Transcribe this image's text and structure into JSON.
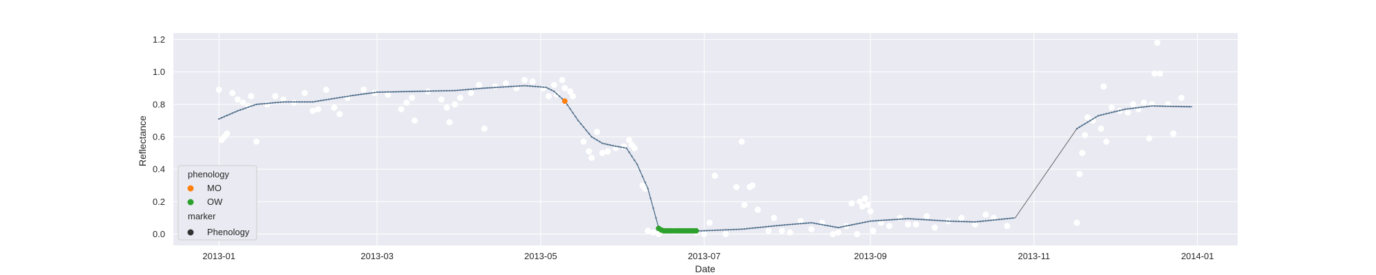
{
  "chart_data": {
    "type": "scatter",
    "title": "",
    "xlabel": "Date",
    "ylabel": "Reflectance",
    "x_ticks": [
      "2013-01",
      "2013-03",
      "2013-05",
      "2013-07",
      "2013-09",
      "2013-11",
      "2014-01"
    ],
    "x_tick_dates": [
      "2013-01-01",
      "2013-03-01",
      "2013-05-01",
      "2013-07-01",
      "2013-09-01",
      "2013-11-01",
      "2014-01-01"
    ],
    "y_ticks": [
      "0.0",
      "0.2",
      "0.4",
      "0.6",
      "0.8",
      "1.0",
      "1.2"
    ],
    "xlim": [
      "2012-12-15",
      "2014-01-16"
    ],
    "ylim": [
      -0.07,
      1.24
    ],
    "grid": true,
    "background_color": "#eaeaf2",
    "legend": {
      "position": "lower-left",
      "hue_title": "phenology",
      "marker_title": "marker",
      "entries": [
        {
          "label": "MO",
          "color": "#ff7f0e"
        },
        {
          "label": "OW",
          "color": "#2ca02c"
        }
      ],
      "marker_entries": [
        {
          "label": "Phenology",
          "color": "#333333"
        }
      ]
    },
    "series": [
      {
        "type": "scatter",
        "color": "#ffffff",
        "points": [
          [
            "2013-01-01",
            0.89
          ],
          [
            "2013-01-02",
            0.58
          ],
          [
            "2013-01-03",
            0.6
          ],
          [
            "2013-01-04",
            0.62
          ],
          [
            "2013-01-06",
            0.87
          ],
          [
            "2013-01-08",
            0.83
          ],
          [
            "2013-01-10",
            0.81
          ],
          [
            "2013-01-12",
            0.79
          ],
          [
            "2013-01-13",
            0.85
          ],
          [
            "2013-01-15",
            0.57
          ],
          [
            "2013-01-19",
            0.8
          ],
          [
            "2013-01-22",
            0.85
          ],
          [
            "2013-01-25",
            0.83
          ],
          [
            "2013-01-29",
            0.81
          ],
          [
            "2013-02-02",
            0.87
          ],
          [
            "2013-02-05",
            0.76
          ],
          [
            "2013-02-07",
            0.77
          ],
          [
            "2013-02-10",
            0.89
          ],
          [
            "2013-02-13",
            0.78
          ],
          [
            "2013-02-15",
            0.74
          ],
          [
            "2013-02-18",
            0.84
          ],
          [
            "2013-02-24",
            0.89
          ],
          [
            "2013-02-28",
            0.87
          ],
          [
            "2013-03-05",
            0.86
          ],
          [
            "2013-03-10",
            0.77
          ],
          [
            "2013-03-12",
            0.81
          ],
          [
            "2013-03-14",
            0.84
          ],
          [
            "2013-03-15",
            0.7
          ],
          [
            "2013-03-20",
            0.88
          ],
          [
            "2013-03-25",
            0.83
          ],
          [
            "2013-03-27",
            0.78
          ],
          [
            "2013-03-28",
            0.69
          ],
          [
            "2013-03-30",
            0.8
          ],
          [
            "2013-04-01",
            0.84
          ],
          [
            "2013-04-05",
            0.87
          ],
          [
            "2013-04-08",
            0.92
          ],
          [
            "2013-04-10",
            0.65
          ],
          [
            "2013-04-14",
            0.91
          ],
          [
            "2013-04-18",
            0.93
          ],
          [
            "2013-04-22",
            0.9
          ],
          [
            "2013-04-25",
            0.95
          ],
          [
            "2013-04-28",
            0.94
          ],
          [
            "2013-05-02",
            0.9
          ],
          [
            "2013-05-04",
            0.85
          ],
          [
            "2013-05-06",
            0.92
          ],
          [
            "2013-05-07",
            0.86
          ],
          [
            "2013-05-09",
            0.95
          ],
          [
            "2013-05-10",
            0.9
          ],
          [
            "2013-05-12",
            0.88
          ],
          [
            "2013-05-13",
            0.85
          ],
          [
            "2013-05-17",
            0.57
          ],
          [
            "2013-05-19",
            0.51
          ],
          [
            "2013-05-20",
            0.47
          ],
          [
            "2013-05-22",
            0.63
          ],
          [
            "2013-05-24",
            0.5
          ],
          [
            "2013-05-26",
            0.51
          ],
          [
            "2013-05-29",
            0.53
          ],
          [
            "2013-06-01",
            0.54
          ],
          [
            "2013-06-03",
            0.58
          ],
          [
            "2013-06-04",
            0.55
          ],
          [
            "2013-06-05",
            0.53
          ],
          [
            "2013-06-08",
            0.3
          ],
          [
            "2013-06-09",
            0.28
          ],
          [
            "2013-06-10",
            0.02
          ],
          [
            "2013-06-12",
            0.01
          ],
          [
            "2013-06-14",
            0.0
          ],
          [
            "2013-06-20",
            0.02
          ],
          [
            "2013-06-28",
            0.01
          ],
          [
            "2013-07-01",
            0.0
          ],
          [
            "2013-07-03",
            0.07
          ],
          [
            "2013-07-05",
            0.36
          ],
          [
            "2013-07-09",
            0.0
          ],
          [
            "2013-07-13",
            0.29
          ],
          [
            "2013-07-15",
            0.57
          ],
          [
            "2013-07-16",
            0.18
          ],
          [
            "2013-07-18",
            0.29
          ],
          [
            "2013-07-19",
            0.3
          ],
          [
            "2013-07-21",
            0.15
          ],
          [
            "2013-07-25",
            0.02
          ],
          [
            "2013-07-27",
            0.1
          ],
          [
            "2013-07-30",
            0.02
          ],
          [
            "2013-08-02",
            0.01
          ],
          [
            "2013-08-06",
            0.08
          ],
          [
            "2013-08-10",
            0.03
          ],
          [
            "2013-08-14",
            0.07
          ],
          [
            "2013-08-18",
            0.0
          ],
          [
            "2013-08-20",
            0.01
          ],
          [
            "2013-08-23",
            0.05
          ],
          [
            "2013-08-25",
            0.19
          ],
          [
            "2013-08-27",
            0.0
          ],
          [
            "2013-08-28",
            0.2
          ],
          [
            "2013-08-29",
            0.17
          ],
          [
            "2013-08-30",
            0.22
          ],
          [
            "2013-08-31",
            0.18
          ],
          [
            "2013-09-01",
            0.14
          ],
          [
            "2013-09-02",
            0.02
          ],
          [
            "2013-09-05",
            0.07
          ],
          [
            "2013-09-08",
            0.05
          ],
          [
            "2013-09-12",
            0.1
          ],
          [
            "2013-09-15",
            0.06
          ],
          [
            "2013-09-18",
            0.06
          ],
          [
            "2013-09-22",
            0.11
          ],
          [
            "2013-09-25",
            0.04
          ],
          [
            "2013-09-30",
            0.08
          ],
          [
            "2013-10-05",
            0.1
          ],
          [
            "2013-10-10",
            0.06
          ],
          [
            "2013-10-14",
            0.12
          ],
          [
            "2013-10-17",
            0.1
          ],
          [
            "2013-10-22",
            0.05
          ],
          [
            "2013-11-17",
            0.07
          ],
          [
            "2013-11-18",
            0.37
          ],
          [
            "2013-11-19",
            0.5
          ],
          [
            "2013-11-20",
            0.61
          ],
          [
            "2013-11-21",
            0.72
          ],
          [
            "2013-11-23",
            0.7
          ],
          [
            "2013-11-26",
            0.65
          ],
          [
            "2013-11-27",
            0.91
          ],
          [
            "2013-11-28",
            0.57
          ],
          [
            "2013-11-30",
            0.78
          ],
          [
            "2013-12-03",
            0.76
          ],
          [
            "2013-12-06",
            0.75
          ],
          [
            "2013-12-08",
            0.8
          ],
          [
            "2013-12-10",
            0.77
          ],
          [
            "2013-12-12",
            0.81
          ],
          [
            "2013-12-14",
            0.59
          ],
          [
            "2013-12-15",
            0.8
          ],
          [
            "2013-12-16",
            0.99
          ],
          [
            "2013-12-17",
            1.18
          ],
          [
            "2013-12-18",
            0.99
          ],
          [
            "2013-12-21",
            0.8
          ],
          [
            "2013-12-23",
            0.62
          ],
          [
            "2013-12-26",
            0.84
          ]
        ]
      },
      {
        "type": "line",
        "color": "#4e6e8a",
        "thin_color": "#555555",
        "marker_size": 1.2,
        "points": [
          [
            "2013-01-01",
            0.71
          ],
          [
            "2013-01-08",
            0.76
          ],
          [
            "2013-01-15",
            0.8
          ],
          [
            "2013-01-25",
            0.815
          ],
          [
            "2013-02-05",
            0.815
          ],
          [
            "2013-02-20",
            0.855
          ],
          [
            "2013-03-01",
            0.875
          ],
          [
            "2013-03-15",
            0.88
          ],
          [
            "2013-03-30",
            0.885
          ],
          [
            "2013-04-10",
            0.9
          ],
          [
            "2013-04-25",
            0.915
          ],
          [
            "2013-05-03",
            0.905
          ],
          [
            "2013-05-06",
            0.88
          ],
          [
            "2013-05-10",
            0.82
          ],
          [
            "2013-05-15",
            0.7
          ],
          [
            "2013-05-20",
            0.6
          ],
          [
            "2013-05-24",
            0.56
          ],
          [
            "2013-05-28",
            0.545
          ],
          [
            "2013-06-02",
            0.53
          ],
          [
            "2013-06-06",
            0.43
          ],
          [
            "2013-06-10",
            0.28
          ],
          [
            "2013-06-14",
            0.04
          ],
          [
            "2013-06-16",
            0.02
          ],
          [
            "2013-06-30",
            0.02
          ],
          [
            "2013-07-15",
            0.03
          ],
          [
            "2013-07-30",
            0.055
          ],
          [
            "2013-08-10",
            0.07
          ],
          [
            "2013-08-20",
            0.04
          ],
          [
            "2013-09-01",
            0.08
          ],
          [
            "2013-09-15",
            0.095
          ],
          [
            "2013-09-30",
            0.08
          ],
          [
            "2013-10-10",
            0.075
          ],
          [
            "2013-10-25",
            0.1
          ],
          [
            "2013-11-17",
            0.65
          ],
          [
            "2013-11-25",
            0.73
          ],
          [
            "2013-12-05",
            0.77
          ],
          [
            "2013-12-15",
            0.79
          ],
          [
            "2013-12-30",
            0.785
          ]
        ],
        "gap_after": "2013-10-25"
      },
      {
        "type": "scatter",
        "name": "MO",
        "color": "#ff7f0e",
        "points": [
          [
            "2013-05-10",
            0.82
          ]
        ]
      },
      {
        "type": "scatter",
        "name": "OW",
        "color": "#2ca02c",
        "points": [
          [
            "2013-06-14",
            0.035
          ],
          [
            "2013-06-15",
            0.025
          ],
          [
            "2013-06-16",
            0.02
          ],
          [
            "2013-06-17",
            0.02
          ],
          [
            "2013-06-18",
            0.02
          ],
          [
            "2013-06-19",
            0.02
          ],
          [
            "2013-06-20",
            0.02
          ],
          [
            "2013-06-21",
            0.02
          ],
          [
            "2013-06-22",
            0.02
          ],
          [
            "2013-06-23",
            0.02
          ],
          [
            "2013-06-24",
            0.02
          ],
          [
            "2013-06-25",
            0.02
          ],
          [
            "2013-06-26",
            0.02
          ],
          [
            "2013-06-27",
            0.02
          ],
          [
            "2013-06-28",
            0.02
          ]
        ]
      }
    ]
  }
}
